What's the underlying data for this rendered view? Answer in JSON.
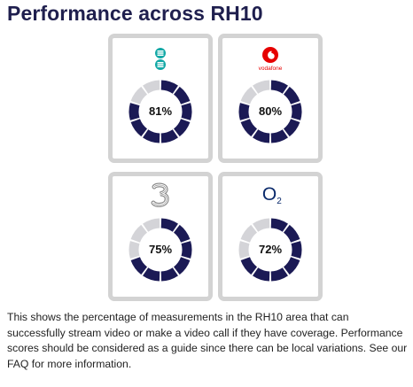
{
  "page": {
    "title": "Performance across RH10",
    "description": "This shows the percentage of measurements in the RH10 area that can successfully stream video or make a video call if they have coverage. Performance scores should be considered as a guide since there can be local variations. See our FAQ for more information."
  },
  "colors": {
    "ring_filled": "#1b1a55",
    "ring_empty": "#d4d4d8",
    "card_border": "#d3d3d3",
    "ee_teal": "#12a8a6",
    "vodafone_red": "#e60000",
    "o2_navy": "#0a2a6b"
  },
  "operators": [
    {
      "id": "ee",
      "logo_icon": "ee-logo-icon",
      "percent_label": "81%",
      "score": 81
    },
    {
      "id": "vodafone",
      "logo_icon": "vodafone-logo-icon",
      "logo_text": "vodafone",
      "percent_label": "80%",
      "score": 80
    },
    {
      "id": "three",
      "logo_icon": "three-logo-icon",
      "percent_label": "75%",
      "score": 75
    },
    {
      "id": "o2",
      "logo_icon": "o2-logo-icon",
      "percent_label": "72%",
      "score": 72
    }
  ]
}
